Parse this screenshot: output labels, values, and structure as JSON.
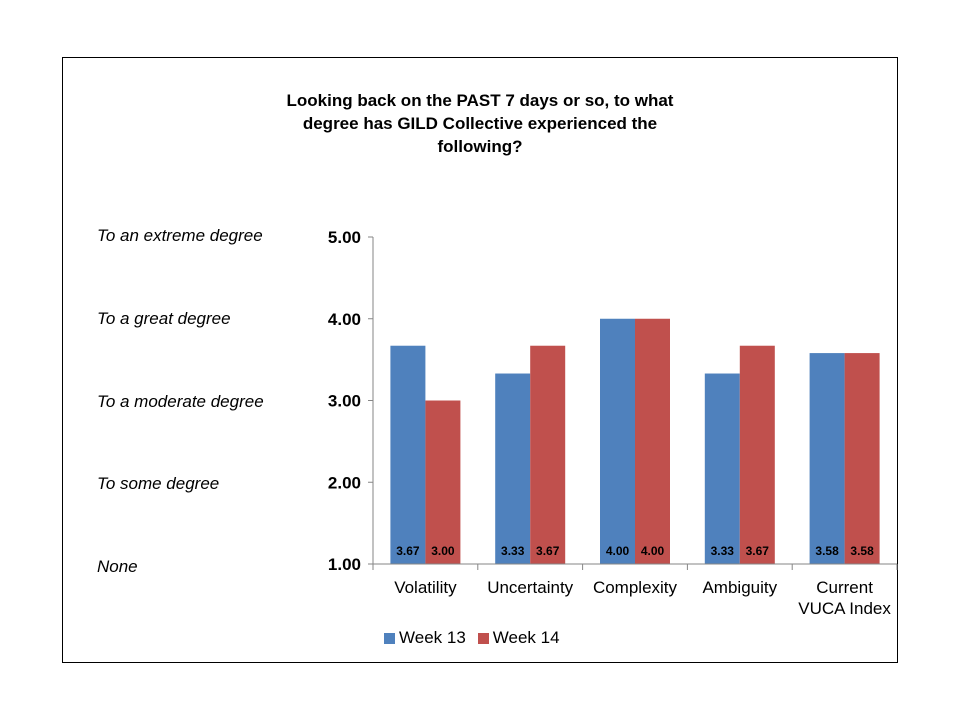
{
  "chart_data": {
    "type": "bar",
    "title": "Looking back on the PAST 7 days or so, to what degree has GILD Collective experienced the following?",
    "categories": [
      "Volatility",
      "Uncertainty",
      "Complexity",
      "Ambiguity",
      "Current VUCA Index"
    ],
    "series": [
      {
        "name": "Week 13",
        "color": "#4F81BD",
        "values": [
          3.67,
          3.33,
          4.0,
          3.33,
          3.58
        ]
      },
      {
        "name": "Week 14",
        "color": "#C0504D",
        "values": [
          3.0,
          3.67,
          4.0,
          3.67,
          3.58
        ]
      }
    ],
    "ylim": [
      1.0,
      5.0
    ],
    "yticks": [
      "1.00",
      "2.00",
      "3.00",
      "4.00",
      "5.00"
    ],
    "degree_labels": [
      "None",
      "To some degree",
      "To a moderate degree",
      "To a great degree",
      "To an extreme degree"
    ],
    "grid": false,
    "legend_position": "bottom"
  }
}
